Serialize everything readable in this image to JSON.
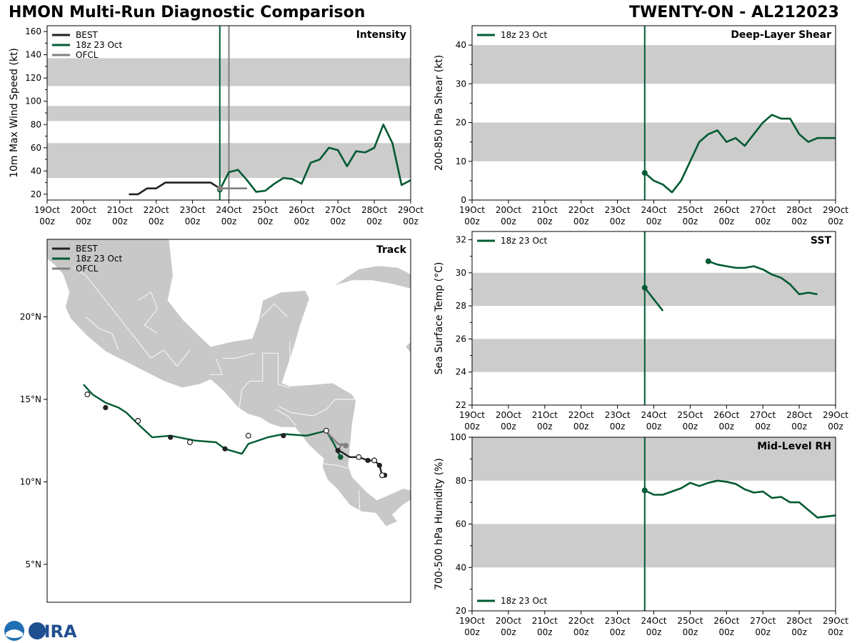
{
  "header": {
    "title": "HMON Multi-Run Diagnostic Comparison",
    "storm": "TWENTY-ON - AL212023"
  },
  "logo": {
    "text": "CIRA"
  },
  "colors": {
    "best": "#222222",
    "run": "#005a32",
    "ofcl": "#808080",
    "band": "#cccccc",
    "land": "#c8c8c8"
  },
  "time_axis": {
    "ticks": [
      "19Oct",
      "20Oct",
      "21Oct",
      "22Oct",
      "23Oct",
      "24Oct",
      "25Oct",
      "26Oct",
      "27Oct",
      "28Oct",
      "29Oct"
    ],
    "sub": "00z",
    "init_day": 23.75,
    "ofcl_line_day": 24.0
  },
  "chart_data": [
    {
      "id": "intensity",
      "type": "line",
      "title": "Intensity",
      "ylabel": "10m Max Wind Speed (kt)",
      "ylim": [
        15,
        165
      ],
      "yticks": [
        20,
        40,
        60,
        80,
        100,
        120,
        140,
        160
      ],
      "xlim": [
        19,
        29
      ],
      "bands": [
        [
          34,
          64
        ],
        [
          83,
          96
        ],
        [
          113,
          137
        ]
      ],
      "legend": [
        "BEST",
        "18z 23 Oct",
        "OFCL"
      ],
      "series": [
        {
          "name": "BEST",
          "x": [
            21.25,
            21.5,
            21.75,
            22.0,
            22.25,
            22.5,
            22.75,
            23.0,
            23.25,
            23.5,
            23.75
          ],
          "y": [
            20,
            20,
            25,
            25,
            30,
            30,
            30,
            30,
            30,
            30,
            25
          ]
        },
        {
          "name": "18z 23 Oct",
          "x": [
            23.75,
            24.0,
            24.25,
            24.5,
            24.75,
            25.0,
            25.25,
            25.5,
            25.75,
            26.0,
            26.25,
            26.5,
            26.75,
            27.0,
            27.25,
            27.5,
            27.75,
            28.0,
            28.25,
            28.5,
            28.75,
            29.0
          ],
          "y": [
            24,
            39,
            41,
            32,
            22,
            23,
            29,
            34,
            33,
            29,
            47,
            50,
            60,
            58,
            44,
            57,
            56,
            60,
            80,
            64,
            28,
            32
          ]
        },
        {
          "name": "OFCL",
          "x": [
            23.75,
            24.0,
            24.25,
            24.5
          ],
          "y": [
            25,
            25,
            25,
            25
          ]
        }
      ]
    },
    {
      "id": "shear",
      "type": "line",
      "title": "Deep-Layer Shear",
      "ylabel": "200-850 hPa Shear (kt)",
      "ylim": [
        0,
        45
      ],
      "yticks": [
        0,
        10,
        20,
        30,
        40
      ],
      "xlim": [
        19,
        29
      ],
      "bands": [
        [
          10,
          20
        ],
        [
          30,
          40
        ]
      ],
      "legend": [
        "18z 23 Oct"
      ],
      "series": [
        {
          "name": "18z 23 Oct",
          "x": [
            23.75,
            24.0,
            24.25,
            24.5,
            24.75,
            25.0,
            25.25,
            25.5,
            25.75,
            26.0,
            26.25,
            26.5,
            26.75,
            27.0,
            27.25,
            27.5,
            27.75,
            28.0,
            28.25,
            28.5,
            28.75,
            29.0
          ],
          "y": [
            7,
            5,
            4,
            2,
            5,
            10,
            15,
            17,
            18,
            15,
            16,
            14,
            17,
            20,
            22,
            21,
            21,
            17,
            15,
            16,
            16,
            16
          ]
        }
      ]
    },
    {
      "id": "sst",
      "type": "line",
      "title": "SST",
      "ylabel": "Sea Surface Temp (°C)",
      "ylim": [
        22,
        32.5
      ],
      "yticks": [
        22,
        24,
        26,
        28,
        30,
        32
      ],
      "xlim": [
        19,
        29
      ],
      "bands": [
        [
          24,
          26
        ],
        [
          28,
          30
        ]
      ],
      "legend": [
        "18z 23 Oct"
      ],
      "series": [
        {
          "name": "18z 23 Oct",
          "x": [
            23.75,
            24.0,
            24.25
          ],
          "y": [
            29.1,
            28.4,
            27.7
          ]
        },
        {
          "name": "18z 23 Oct",
          "x": [
            25.5,
            25.75,
            26.0,
            26.25,
            26.5,
            26.75,
            27.0,
            27.25,
            27.5,
            27.75,
            28.0,
            28.25,
            28.5
          ],
          "y": [
            30.7,
            30.5,
            30.4,
            30.3,
            30.3,
            30.4,
            30.2,
            29.9,
            29.7,
            29.3,
            28.7,
            28.8,
            28.7
          ]
        }
      ]
    },
    {
      "id": "rh",
      "type": "line",
      "title": "Mid-Level RH",
      "ylabel": "700-500 hPa Humidity (%)",
      "ylim": [
        20,
        100
      ],
      "yticks": [
        20,
        40,
        60,
        80,
        100
      ],
      "xlim": [
        19,
        29
      ],
      "bands": [
        [
          40,
          60
        ],
        [
          80,
          100
        ]
      ],
      "legend": [
        "18z 23 Oct"
      ],
      "series": [
        {
          "name": "18z 23 Oct",
          "x": [
            23.75,
            24.0,
            24.25,
            24.5,
            24.75,
            25.0,
            25.25,
            25.5,
            25.75,
            26.0,
            26.25,
            26.5,
            26.75,
            27.0,
            27.25,
            27.5,
            27.75,
            28.0,
            28.25,
            28.5,
            28.75,
            29.0
          ],
          "y": [
            75.5,
            73.5,
            73.5,
            75,
            76.5,
            79,
            77.5,
            79,
            80,
            79.5,
            78.5,
            76,
            74.5,
            75,
            72,
            72.5,
            70,
            70,
            66.5,
            63,
            63.5,
            64
          ]
        }
      ]
    },
    {
      "id": "track",
      "type": "scatter",
      "title": "Track",
      "xlim": [
        -107.0,
        -79.0
      ],
      "ylim": [
        2.7,
        24.7
      ],
      "yticks": [
        5,
        10,
        15,
        20
      ],
      "ytick_labels": [
        "5°N",
        "10°N",
        "15°N",
        "20°N"
      ],
      "legend": [
        "BEST",
        "18z 23 Oct",
        "OFCL"
      ],
      "series": [
        {
          "name": "BEST",
          "lon": [
            -81.0,
            -81.2,
            -81.4,
            -81.8,
            -82.3,
            -83.0,
            -83.7,
            -84.3,
            -84.6,
            -84.7
          ],
          "lat": [
            10.4,
            10.4,
            11.0,
            11.3,
            11.3,
            11.5,
            11.5,
            11.8,
            11.9,
            11.9
          ]
        },
        {
          "name": "18z 23 Oct",
          "lon": [
            -84.4,
            -84.9,
            -85.5,
            -87.0,
            -88.8,
            -90.0,
            -91.5,
            -92.0,
            -93.3,
            -94.0,
            -95.6,
            -97.5,
            -98.9,
            -100.0,
            -100.9,
            -101.5,
            -102.5,
            -103.5,
            -104.2
          ],
          "lat": [
            11.5,
            12.3,
            13.1,
            12.8,
            12.9,
            12.7,
            12.3,
            11.7,
            12.0,
            12.4,
            12.5,
            12.8,
            12.7,
            13.5,
            14.2,
            14.5,
            14.8,
            15.3,
            15.9
          ]
        },
        {
          "name": "OFCL",
          "lon": [
            -84.6,
            -84.3,
            -84.0,
            -84.6,
            -85.2,
            -85.5
          ],
          "lat": [
            11.9,
            12.3,
            12.2,
            12.3,
            12.8,
            13.1
          ]
        }
      ],
      "markers_filled": [
        {
          "lon": -81.0,
          "lat": 10.4
        },
        {
          "lon": -81.4,
          "lat": 11.0
        },
        {
          "lon": -82.3,
          "lat": 11.3
        },
        {
          "lon": -84.6,
          "lat": 11.9
        },
        {
          "lon": -88.8,
          "lat": 12.8
        },
        {
          "lon": -93.3,
          "lat": 12.0
        },
        {
          "lon": -97.5,
          "lat": 12.7
        },
        {
          "lon": -102.5,
          "lat": 14.5
        }
      ],
      "markers_open": [
        {
          "lon": -81.2,
          "lat": 10.4
        },
        {
          "lon": -81.8,
          "lat": 11.3
        },
        {
          "lon": -83.0,
          "lat": 11.5
        },
        {
          "lon": -85.5,
          "lat": 13.1
        },
        {
          "lon": -91.5,
          "lat": 12.8
        },
        {
          "lon": -96.0,
          "lat": 12.4
        },
        {
          "lon": -100.0,
          "lat": 13.7
        },
        {
          "lon": -103.9,
          "lat": 15.3
        }
      ],
      "marker_run_start": {
        "lon": -84.4,
        "lat": 11.5
      },
      "marker_ofcl": {
        "lon": -84.0,
        "lat": 12.2
      }
    }
  ]
}
